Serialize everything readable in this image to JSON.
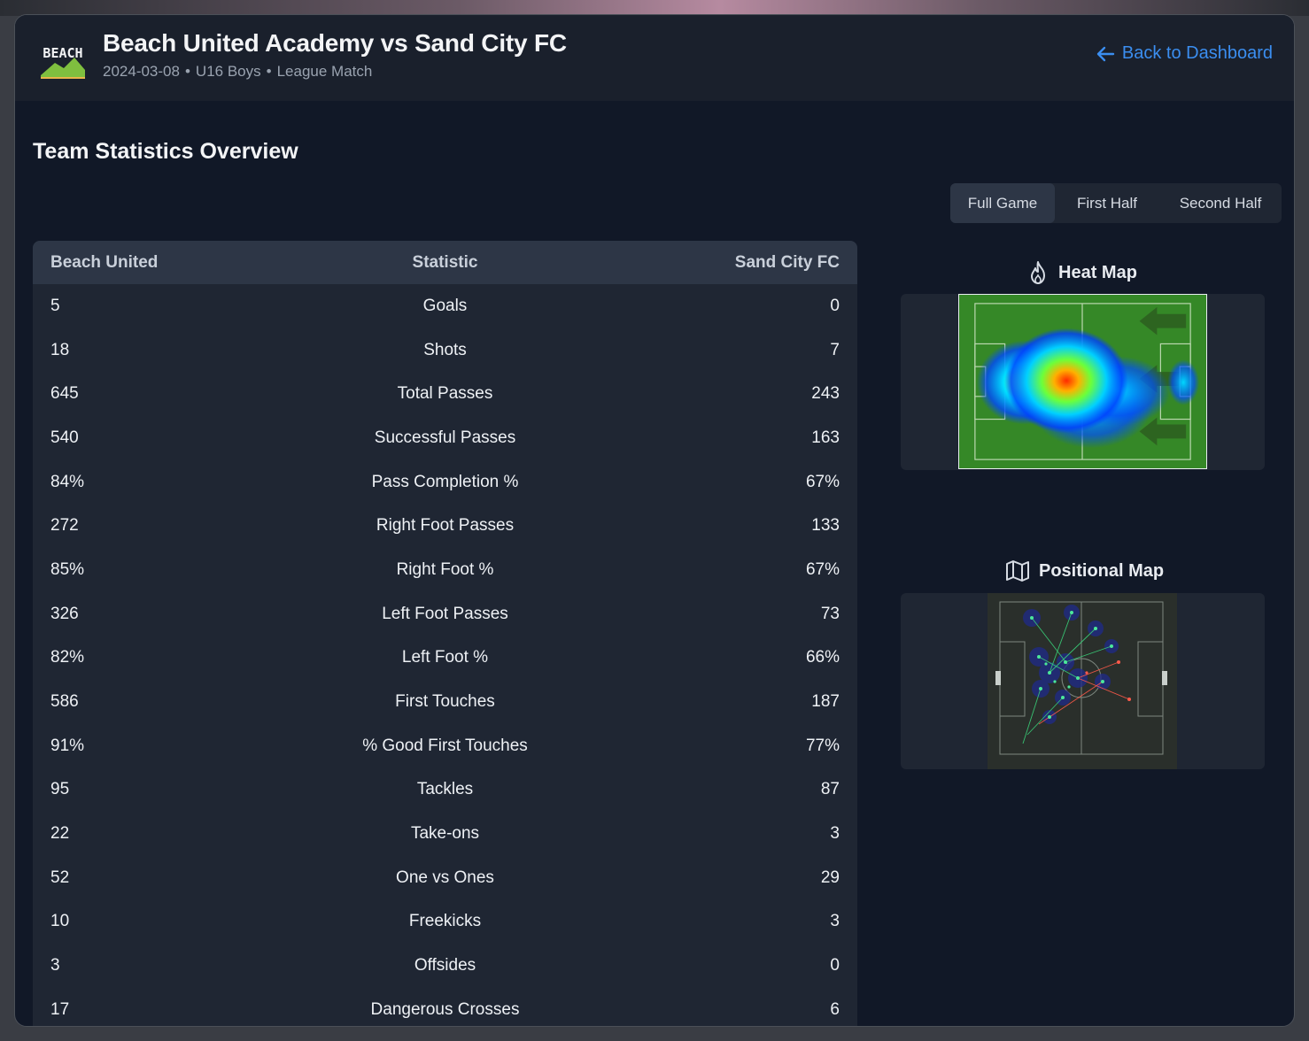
{
  "logo_text": "BEACH",
  "header": {
    "title": "Beach United Academy vs Sand City FC",
    "date": "2024-03-08",
    "category": "U16 Boys",
    "match_type": "League Match",
    "back_label": "Back to Dashboard"
  },
  "section_title": "Team Statistics Overview",
  "tabs": [
    {
      "label": "Full Game",
      "active": true
    },
    {
      "label": "First Half",
      "active": false
    },
    {
      "label": "Second Half",
      "active": false
    }
  ],
  "table": {
    "headers": [
      "Beach United",
      "Statistic",
      "Sand City FC"
    ],
    "rows": [
      [
        "5",
        "Goals",
        "0"
      ],
      [
        "18",
        "Shots",
        "7"
      ],
      [
        "645",
        "Total Passes",
        "243"
      ],
      [
        "540",
        "Successful Passes",
        "163"
      ],
      [
        "84%",
        "Pass Completion %",
        "67%"
      ],
      [
        "272",
        "Right Foot Passes",
        "133"
      ],
      [
        "85%",
        "Right Foot %",
        "67%"
      ],
      [
        "326",
        "Left Foot Passes",
        "73"
      ],
      [
        "82%",
        "Left Foot %",
        "66%"
      ],
      [
        "586",
        "First Touches",
        "187"
      ],
      [
        "91%",
        "% Good First Touches",
        "77%"
      ],
      [
        "95",
        "Tackles",
        "87"
      ],
      [
        "22",
        "Take-ons",
        "3"
      ],
      [
        "52",
        "One vs Ones",
        "29"
      ],
      [
        "10",
        "Freekicks",
        "3"
      ],
      [
        "3",
        "Offsides",
        "0"
      ],
      [
        "17",
        "Dangerous Crosses",
        "6"
      ]
    ]
  },
  "heat_map": {
    "title": "Heat Map",
    "icon": "flame-icon"
  },
  "positional_map": {
    "title": "Positional Map",
    "icon": "map-icon"
  },
  "colors": {
    "accent": "#3b8ef0",
    "background": "#111827",
    "panel": "#1f2633"
  }
}
